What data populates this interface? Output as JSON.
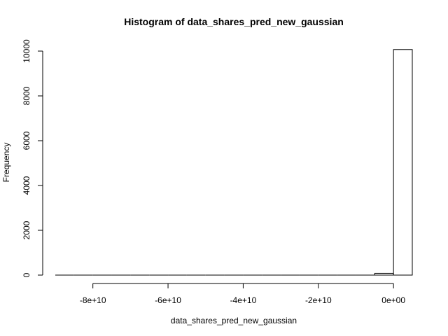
{
  "chart_data": {
    "type": "bar",
    "title": "Histogram of data_shares_pred_new_gaussian",
    "xlabel": "data_shares_pred_new_gaussian",
    "ylabel": "Frequency",
    "xlim": [
      -90000000000,
      5000000000
    ],
    "ylim": [
      0,
      10000
    ],
    "bin_width": 5000000000,
    "bins": [
      {
        "start": -90000000000,
        "end": -85000000000,
        "count": 0
      },
      {
        "start": -85000000000,
        "end": -80000000000,
        "count": 0
      },
      {
        "start": -80000000000,
        "end": -75000000000,
        "count": 0
      },
      {
        "start": -75000000000,
        "end": -70000000000,
        "count": 0
      },
      {
        "start": -70000000000,
        "end": -65000000000,
        "count": 0
      },
      {
        "start": -65000000000,
        "end": -60000000000,
        "count": 0
      },
      {
        "start": -60000000000,
        "end": -55000000000,
        "count": 0
      },
      {
        "start": -55000000000,
        "end": -50000000000,
        "count": 0
      },
      {
        "start": -50000000000,
        "end": -45000000000,
        "count": 0
      },
      {
        "start": -45000000000,
        "end": -40000000000,
        "count": 0
      },
      {
        "start": -40000000000,
        "end": -35000000000,
        "count": 0
      },
      {
        "start": -35000000000,
        "end": -30000000000,
        "count": 0
      },
      {
        "start": -30000000000,
        "end": -25000000000,
        "count": 0
      },
      {
        "start": -25000000000,
        "end": -20000000000,
        "count": 0
      },
      {
        "start": -20000000000,
        "end": -15000000000,
        "count": 0
      },
      {
        "start": -15000000000,
        "end": -10000000000,
        "count": 0
      },
      {
        "start": -10000000000,
        "end": -5000000000,
        "count": 0
      },
      {
        "start": -5000000000,
        "end": 0,
        "count": 80
      },
      {
        "start": 0,
        "end": 5000000000,
        "count": 10070
      }
    ],
    "x_ticks": [
      {
        "value": -80000000000,
        "label": "-8e+10"
      },
      {
        "value": -60000000000,
        "label": "-6e+10"
      },
      {
        "value": -40000000000,
        "label": "-4e+10"
      },
      {
        "value": -20000000000,
        "label": "-2e+10"
      },
      {
        "value": 0,
        "label": "0e+00"
      }
    ],
    "y_ticks": [
      {
        "value": 0,
        "label": "0"
      },
      {
        "value": 2000,
        "label": "2000"
      },
      {
        "value": 4000,
        "label": "4000"
      },
      {
        "value": 6000,
        "label": "6000"
      },
      {
        "value": 8000,
        "label": "8000"
      },
      {
        "value": 10000,
        "label": "10000"
      }
    ],
    "grid": false
  }
}
